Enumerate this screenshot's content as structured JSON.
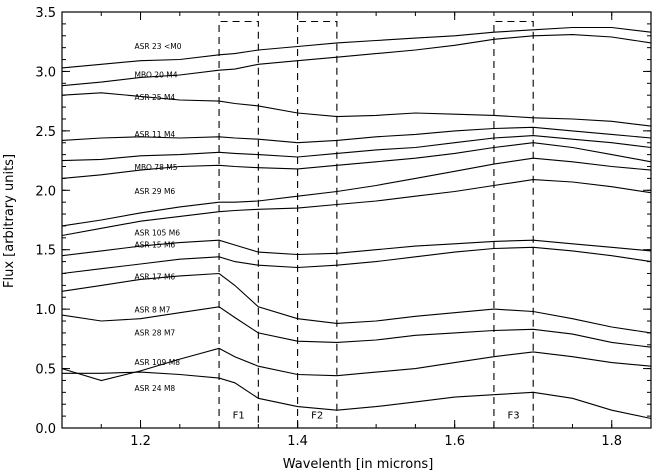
{
  "chart_data": {
    "type": "line",
    "title": "",
    "xlabel": "Wavelenth [in microns]",
    "ylabel": "Flux [arbitrary units]",
    "xlim": [
      1.1,
      1.85
    ],
    "ylim": [
      0.0,
      3.5
    ],
    "x_ticks": [
      1.2,
      1.4,
      1.6,
      1.8
    ],
    "x_tick_labels": [
      "1.2",
      "1.4",
      "1.6",
      "1.8"
    ],
    "y_ticks": [
      0.0,
      0.5,
      1.0,
      1.5,
      2.0,
      2.5,
      3.0,
      3.5
    ],
    "y_tick_labels": [
      "0.0",
      "0.5",
      "1.0",
      "1.5",
      "2.0",
      "2.5",
      "3.0",
      "3.5"
    ],
    "grid": false,
    "filters": [
      {
        "label": "F1",
        "x0": 1.3,
        "x1": 1.35
      },
      {
        "label": "F2",
        "x0": 1.4,
        "x1": 1.45
      },
      {
        "label": "F3",
        "x0": 1.65,
        "x1": 1.7
      }
    ],
    "filter_top": 3.42,
    "filter_label_y": 0.08,
    "x": [
      1.1,
      1.15,
      1.2,
      1.25,
      1.3,
      1.32,
      1.35,
      1.4,
      1.45,
      1.5,
      1.55,
      1.6,
      1.65,
      1.7,
      1.75,
      1.8,
      1.85
    ],
    "series": [
      {
        "label": "ASR 23 <M0",
        "label_x": 1.2,
        "label_y": 3.19,
        "values": [
          3.03,
          3.06,
          3.09,
          3.1,
          3.14,
          3.15,
          3.18,
          3.21,
          3.24,
          3.26,
          3.28,
          3.3,
          3.33,
          3.35,
          3.37,
          3.37,
          3.33
        ]
      },
      {
        "label": "MBO 20 M4",
        "label_x": 1.2,
        "label_y": 2.95,
        "values": [
          2.88,
          2.91,
          2.95,
          2.97,
          3.01,
          3.02,
          3.06,
          3.09,
          3.12,
          3.15,
          3.18,
          3.22,
          3.27,
          3.3,
          3.31,
          3.29,
          3.24
        ]
      },
      {
        "label": "ASR 25 M4",
        "label_x": 1.2,
        "label_y": 2.76,
        "values": [
          2.8,
          2.82,
          2.79,
          2.76,
          2.75,
          2.73,
          2.71,
          2.65,
          2.62,
          2.63,
          2.65,
          2.64,
          2.63,
          2.61,
          2.6,
          2.58,
          2.54
        ]
      },
      {
        "label": "ASR 11 M4",
        "label_x": 1.2,
        "label_y": 2.45,
        "values": [
          2.42,
          2.44,
          2.45,
          2.44,
          2.45,
          2.44,
          2.43,
          2.4,
          2.42,
          2.45,
          2.47,
          2.5,
          2.52,
          2.53,
          2.5,
          2.47,
          2.44
        ]
      },
      {
        "label": "MBO 78 M5",
        "label_x": 1.2,
        "label_y": 2.17,
        "values": [
          2.25,
          2.26,
          2.29,
          2.3,
          2.32,
          2.31,
          2.3,
          2.28,
          2.31,
          2.34,
          2.36,
          2.4,
          2.44,
          2.46,
          2.43,
          2.4,
          2.36
        ]
      },
      {
        "label": "ASR 29 M6",
        "label_x": 1.2,
        "label_y": 1.97,
        "values": [
          2.1,
          2.13,
          2.17,
          2.2,
          2.21,
          2.2,
          2.19,
          2.18,
          2.21,
          2.24,
          2.27,
          2.31,
          2.36,
          2.4,
          2.36,
          2.3,
          2.24
        ]
      },
      {
        "label": "ASR 105 M6",
        "label_x": 1.2,
        "label_y": 1.62,
        "values": [
          1.7,
          1.75,
          1.81,
          1.86,
          1.9,
          1.9,
          1.91,
          1.95,
          1.99,
          2.04,
          2.1,
          2.16,
          2.22,
          2.27,
          2.24,
          2.2,
          2.17
        ]
      },
      {
        "label": "ASR 15 M6",
        "label_x": 1.2,
        "label_y": 1.52,
        "values": [
          1.62,
          1.68,
          1.74,
          1.78,
          1.82,
          1.83,
          1.84,
          1.85,
          1.88,
          1.91,
          1.95,
          1.99,
          2.04,
          2.09,
          2.07,
          2.03,
          1.98
        ]
      },
      {
        "label": "ASR 17 M6",
        "label_x": 1.2,
        "label_y": 1.25,
        "values": [
          1.45,
          1.49,
          1.53,
          1.56,
          1.58,
          1.54,
          1.48,
          1.46,
          1.47,
          1.5,
          1.53,
          1.55,
          1.57,
          1.58,
          1.55,
          1.52,
          1.49
        ]
      },
      {
        "label": "ASR 8 M7",
        "label_x": 1.2,
        "label_y": 0.97,
        "values": [
          1.3,
          1.34,
          1.38,
          1.42,
          1.44,
          1.4,
          1.37,
          1.35,
          1.37,
          1.4,
          1.44,
          1.48,
          1.51,
          1.52,
          1.49,
          1.45,
          1.4
        ]
      },
      {
        "label": "ASR 28 M7",
        "label_x": 1.2,
        "label_y": 0.78,
        "values": [
          1.15,
          1.2,
          1.25,
          1.28,
          1.3,
          1.2,
          1.02,
          0.92,
          0.88,
          0.9,
          0.94,
          0.97,
          1.0,
          0.98,
          0.92,
          0.85,
          0.8
        ]
      },
      {
        "label": "ASR 109 M8",
        "label_x": 1.2,
        "label_y": 0.53,
        "values": [
          0.95,
          0.9,
          0.92,
          0.97,
          1.02,
          0.93,
          0.8,
          0.73,
          0.72,
          0.74,
          0.78,
          0.8,
          0.82,
          0.83,
          0.79,
          0.72,
          0.68
        ]
      },
      {
        "label": "ASR 24 M8",
        "label_x": 1.2,
        "label_y": 0.31,
        "values": [
          0.5,
          0.4,
          0.48,
          0.58,
          0.67,
          0.6,
          0.52,
          0.45,
          0.44,
          0.47,
          0.5,
          0.55,
          0.6,
          0.64,
          0.6,
          0.55,
          0.52
        ]
      },
      {
        "label": "",
        "label_x": null,
        "label_y": null,
        "values": [
          0.46,
          0.46,
          0.47,
          0.45,
          0.42,
          0.38,
          0.25,
          0.18,
          0.15,
          0.18,
          0.22,
          0.26,
          0.28,
          0.3,
          0.25,
          0.15,
          0.08
        ]
      }
    ]
  }
}
